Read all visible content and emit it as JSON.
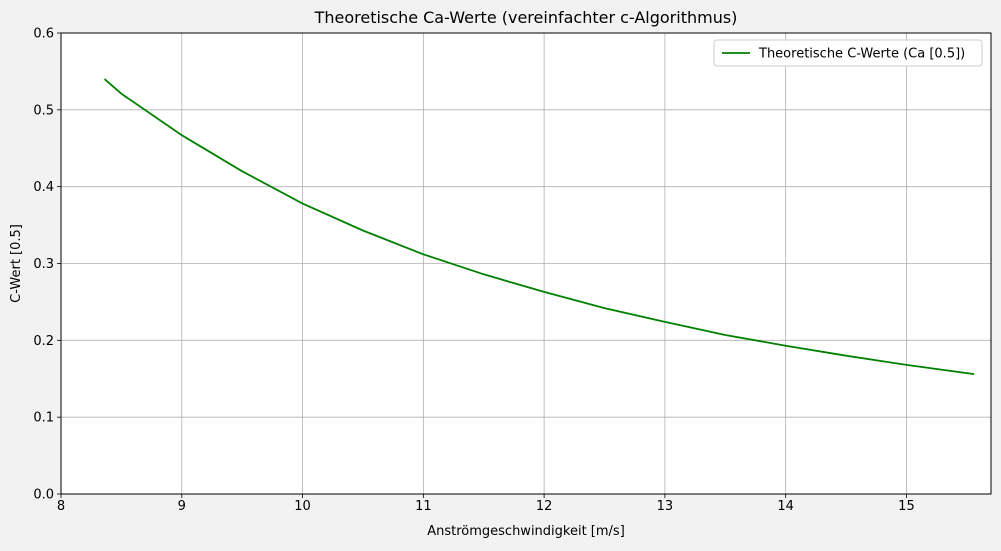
{
  "window": {
    "background": "#f2f2f2"
  },
  "chart_data": {
    "type": "line",
    "title": "Theoretische Ca-Werte (vereinfachter c-Algorithmus)",
    "xlabel": "Anströmgeschwindigkeit [m/s]",
    "ylabel": "C-Wert [0.5]",
    "xlim": [
      8,
      15.7
    ],
    "ylim": [
      0,
      0.6
    ],
    "xticks": [
      8,
      9,
      10,
      11,
      12,
      13,
      14,
      15
    ],
    "xtick_labels": [
      "8",
      "9",
      "10",
      "11",
      "12",
      "13",
      "14",
      "15"
    ],
    "yticks": [
      0.0,
      0.1,
      0.2,
      0.3,
      0.4,
      0.5,
      0.6
    ],
    "ytick_labels": [
      "0.0",
      "0.1",
      "0.2",
      "0.3",
      "0.4",
      "0.5",
      "0.6"
    ],
    "grid": true,
    "legend_position": "top-right",
    "series": [
      {
        "name": "Theoretische C-Werte (Ca [0.5])",
        "color": "#008000",
        "x": [
          8.36,
          8.5,
          9.0,
          9.5,
          10.0,
          10.5,
          11.0,
          11.5,
          12.0,
          12.5,
          13.0,
          13.5,
          14.0,
          14.5,
          15.0,
          15.56
        ],
        "y": [
          0.54,
          0.521,
          0.467,
          0.42,
          0.378,
          0.343,
          0.312,
          0.286,
          0.263,
          0.242,
          0.224,
          0.207,
          0.193,
          0.18,
          0.168,
          0.156
        ]
      }
    ]
  }
}
